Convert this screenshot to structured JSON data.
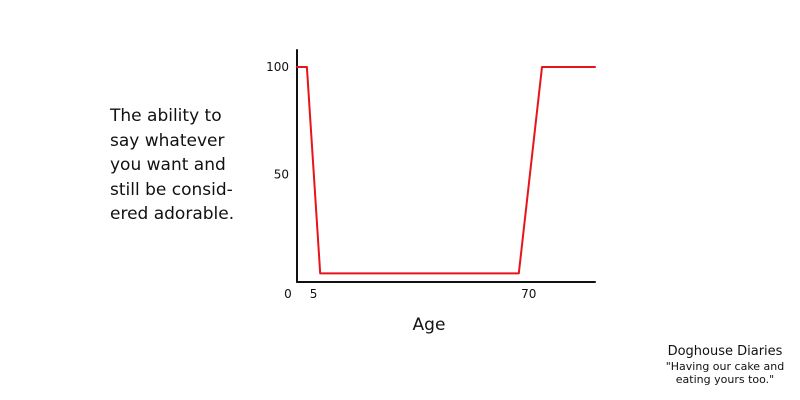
{
  "chart_data": {
    "type": "line",
    "title": "",
    "ylabel": "The ability to say whatever you want and still be considered adorable.",
    "ylabel_lines": [
      "The ability to",
      "say whatever",
      "you want and",
      "still be consid-",
      "ered adorable."
    ],
    "xlabel": "Age",
    "xlim": [
      0,
      90
    ],
    "ylim": [
      0,
      105
    ],
    "x_ticks": [
      {
        "value": 0,
        "label": "0"
      },
      {
        "value": 5,
        "label": "5"
      },
      {
        "value": 70,
        "label": "70"
      }
    ],
    "y_ticks": [
      {
        "value": 100,
        "label": "100"
      },
      {
        "value": 50,
        "label": "50"
      }
    ],
    "grid": false,
    "series": [
      {
        "color": "#e8141b",
        "x": [
          0,
          3,
          7,
          67,
          74,
          90
        ],
        "y": [
          100,
          100,
          4,
          4,
          100,
          100
        ]
      }
    ]
  },
  "credit": {
    "title": "Doghouse Diaries",
    "quote_lines": [
      "\"Having our cake and",
      "eating yours too.\""
    ]
  },
  "colors": {
    "axis": "#111111",
    "line": "#e8141b"
  }
}
